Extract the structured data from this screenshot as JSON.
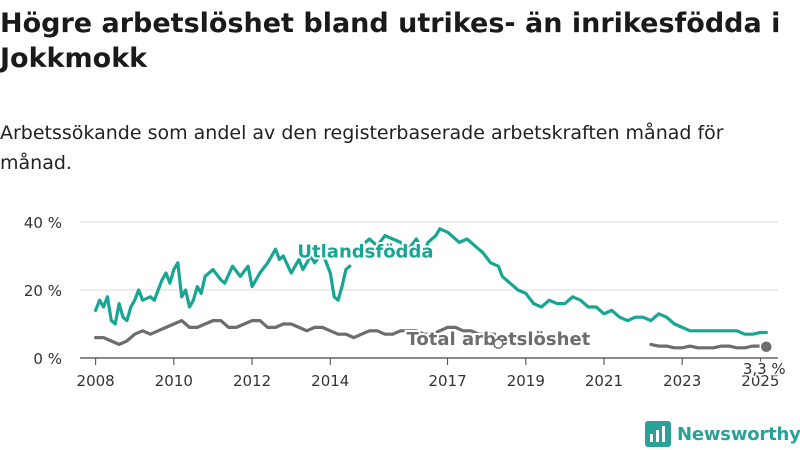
{
  "title": "Högre arbetslöshet bland utrikes- än inrikesfödda i Jokkmokk",
  "subtitle": "Arbetssökande som andel av den registerbaserade arbetskraften månad för månad.",
  "brand": {
    "name": "Newsworthy"
  },
  "colors": {
    "foreign": "#18a594",
    "total": "#6d6d6d",
    "grid": "#dcdcdc",
    "brand": "#2aa198"
  },
  "chart_data": {
    "type": "line",
    "xlabel": "",
    "ylabel": "",
    "xlim": [
      2007.6,
      2025.45
    ],
    "ylim": [
      0,
      40
    ],
    "yticks": [
      0,
      20,
      40
    ],
    "ytick_labels": [
      "0 %",
      "20 %",
      "40 %"
    ],
    "xticks": [
      2008,
      2010,
      2012,
      2014,
      2017,
      2019,
      2021,
      2023,
      2025
    ],
    "xtick_labels": [
      "2008",
      "2010",
      "2012",
      "2014",
      "2017",
      "2019",
      "2021",
      "2023",
      "2025"
    ],
    "series": [
      {
        "name": "Utlandsfödda",
        "x": [
          2008.0,
          2008.1,
          2008.2,
          2008.3,
          2008.4,
          2008.5,
          2008.6,
          2008.7,
          2008.8,
          2008.9,
          2009.0,
          2009.1,
          2009.2,
          2009.4,
          2009.5,
          2009.6,
          2009.7,
          2009.8,
          2009.9,
          2010.0,
          2010.1,
          2010.2,
          2010.3,
          2010.4,
          2010.5,
          2010.6,
          2010.7,
          2010.8,
          2011.0,
          2011.2,
          2011.3,
          2011.5,
          2011.7,
          2011.9,
          2012.0,
          2012.2,
          2012.4,
          2012.5,
          2012.6,
          2012.7,
          2012.8,
          2013.0,
          2013.2,
          2013.3,
          2013.5,
          2013.6,
          2013.8,
          2014.0,
          2014.1,
          2014.2,
          2014.3,
          2014.4,
          2014.5,
          null,
          2014.8,
          2014.9,
          2015.0,
          2015.2,
          2015.4,
          2015.6,
          2015.8,
          2016.0,
          2016.2,
          2016.4,
          2016.5,
          2016.7,
          2016.8,
          2017.0,
          2017.1,
          2017.3,
          2017.5,
          2017.7,
          2017.9,
          2018.1,
          2018.3,
          2018.4,
          2018.6,
          2018.8,
          2019.0,
          2019.2,
          2019.4,
          2019.6,
          2019.8,
          2020.0,
          2020.2,
          2020.4,
          2020.6,
          2020.8,
          2021.0,
          2021.2,
          2021.4,
          2021.6,
          2021.8,
          2022.0,
          2022.2,
          2022.4,
          2022.6,
          2022.8,
          2023.0,
          2023.2,
          2023.4,
          2023.6,
          2023.8,
          2024.0,
          2024.2,
          2024.4,
          2024.6,
          2024.8,
          2025.0,
          2025.15
        ],
        "y": [
          14,
          17,
          15,
          18,
          11,
          10,
          16,
          12,
          11,
          15,
          17,
          20,
          17,
          18,
          17,
          20,
          23,
          25,
          22,
          26,
          28,
          18,
          20,
          15,
          17,
          21,
          19,
          24,
          26,
          23,
          22,
          27,
          24,
          27,
          21,
          25,
          28,
          30,
          32,
          29,
          30,
          25,
          29,
          26,
          30,
          28,
          31,
          25,
          18,
          17,
          21,
          26,
          27,
          null,
          33,
          34,
          35,
          33,
          36,
          35,
          34,
          32,
          35,
          31,
          34,
          36,
          38,
          37,
          36,
          34,
          35,
          33,
          31,
          28,
          27,
          24,
          22,
          20,
          19,
          16,
          15,
          17,
          16,
          16,
          18,
          17,
          15,
          15,
          13,
          14,
          12,
          11,
          12,
          12,
          11,
          13,
          12,
          10,
          9,
          8,
          8,
          8,
          8,
          8,
          8,
          8,
          7,
          7,
          7.5,
          7.5
        ]
      },
      {
        "name": "Total arbetslöshet",
        "x": [
          2008.0,
          2008.2,
          2008.4,
          2008.6,
          2008.8,
          2009.0,
          2009.2,
          2009.4,
          2009.6,
          2009.8,
          2010.0,
          2010.2,
          2010.4,
          2010.6,
          2010.8,
          2011.0,
          2011.2,
          2011.4,
          2011.6,
          2011.8,
          2012.0,
          2012.2,
          2012.4,
          2012.6,
          2012.8,
          2013.0,
          2013.2,
          2013.4,
          2013.6,
          2013.8,
          2014.0,
          2014.2,
          2014.4,
          2014.6,
          2014.8,
          2015.0,
          2015.2,
          2015.4,
          2015.6,
          2015.8,
          2016.0,
          2016.2,
          2016.4,
          2016.6,
          2016.8,
          2017.0,
          2017.2,
          2017.4,
          2017.6,
          2017.8,
          2018.0,
          2018.2,
          null,
          2022.2,
          2022.4,
          2022.6,
          2022.8,
          2023.0,
          2023.2,
          2023.4,
          2023.6,
          2023.8,
          2024.0,
          2024.2,
          2024.4,
          2024.6,
          2024.8,
          2025.0,
          2025.15
        ],
        "y": [
          6,
          6,
          5,
          4,
          5,
          7,
          8,
          7,
          8,
          9,
          10,
          11,
          9,
          9,
          10,
          11,
          11,
          9,
          9,
          10,
          11,
          11,
          9,
          9,
          10,
          10,
          9,
          8,
          9,
          9,
          8,
          7,
          7,
          6,
          7,
          8,
          8,
          7,
          7,
          8,
          8,
          8,
          7,
          7,
          8,
          9,
          9,
          8,
          8,
          7,
          7,
          7,
          null,
          4,
          3.5,
          3.5,
          3,
          3,
          3.5,
          3,
          3,
          3,
          3.5,
          3.5,
          3,
          3,
          3.5,
          3.5,
          3.3
        ]
      }
    ],
    "annotations": [
      {
        "series": "Utlandsfödda",
        "text": "Utlandsfödda",
        "x": 2014.9,
        "y": 29.5
      },
      {
        "series": "Total arbetslöshet",
        "text": "Total arbetslöshet",
        "x": 2018.3,
        "y": 3.8
      },
      {
        "series": "Total arbetslöshet",
        "text": "3,3 %",
        "x": 2025.15,
        "y": 3.3
      }
    ],
    "grid": true,
    "legend": "none"
  }
}
